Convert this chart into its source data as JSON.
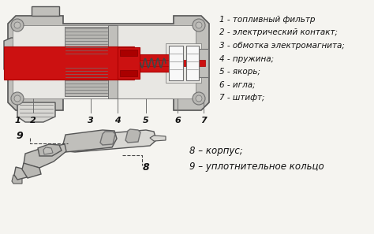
{
  "bg_color": "#f5f4f0",
  "labels_top": [
    "1 - топливный фильтр",
    "2 - электрический контакт;",
    "3 - обмотка электромагнита;",
    "4 - пружина;",
    "5 - якорь;",
    "6 - игла;",
    "7 - штифт;"
  ],
  "labels_bottom": [
    "8 – корпус;",
    "9 – уплотнительное кольцо"
  ],
  "gray_body": "#c0bfbb",
  "gray_light": "#d8d7d3",
  "gray_inner": "#e8e7e3",
  "gray_mid": "#b8b7b3",
  "dark_gray": "#707070",
  "line_color": "#555555",
  "red_color": "#cc1111",
  "red_dark": "#aa0000",
  "white_color": "#f8f8f8",
  "hatch_color": "#999999",
  "text_color": "#111111",
  "font_size_labels": 7.5,
  "font_size_numbers": 8
}
